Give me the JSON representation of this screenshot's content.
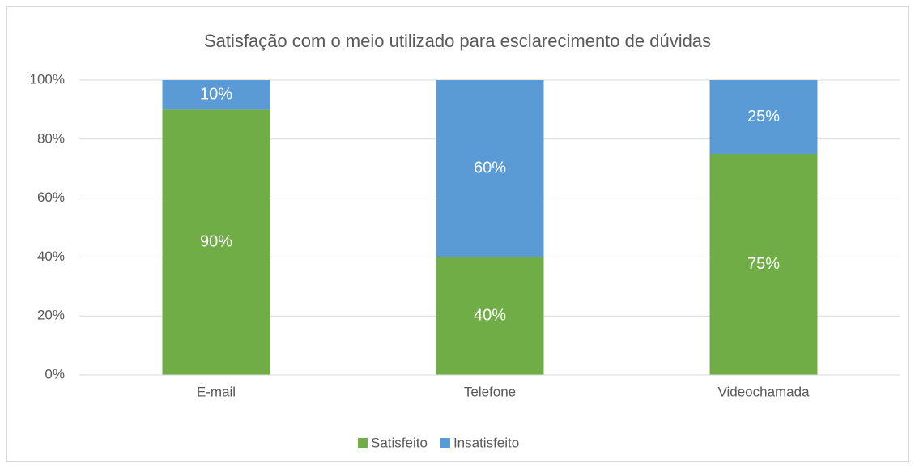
{
  "chart_data": {
    "type": "stacked_bar",
    "title": "Satisfação com o meio utilizado para esclarecimento de dúvidas",
    "categories": [
      "E-mail",
      "Telefone",
      "Videochamada"
    ],
    "series": [
      {
        "name": "Satisfeito",
        "color": "#70ad47",
        "values": [
          90,
          40,
          75
        ],
        "value_labels": [
          "90%",
          "40%",
          "75%"
        ]
      },
      {
        "name": "Insatisfeito",
        "color": "#5b9bd5",
        "values": [
          10,
          60,
          25
        ],
        "value_labels": [
          "10%",
          "60%",
          "25%"
        ]
      }
    ],
    "ylim": [
      0,
      100
    ],
    "yticks": [
      {
        "value": 0,
        "label": "0%"
      },
      {
        "value": 20,
        "label": "20%"
      },
      {
        "value": 40,
        "label": "40%"
      },
      {
        "value": 60,
        "label": "60%"
      },
      {
        "value": 80,
        "label": "80%"
      },
      {
        "value": 100,
        "label": "100%"
      }
    ],
    "grid": true,
    "legend": "bottom"
  }
}
